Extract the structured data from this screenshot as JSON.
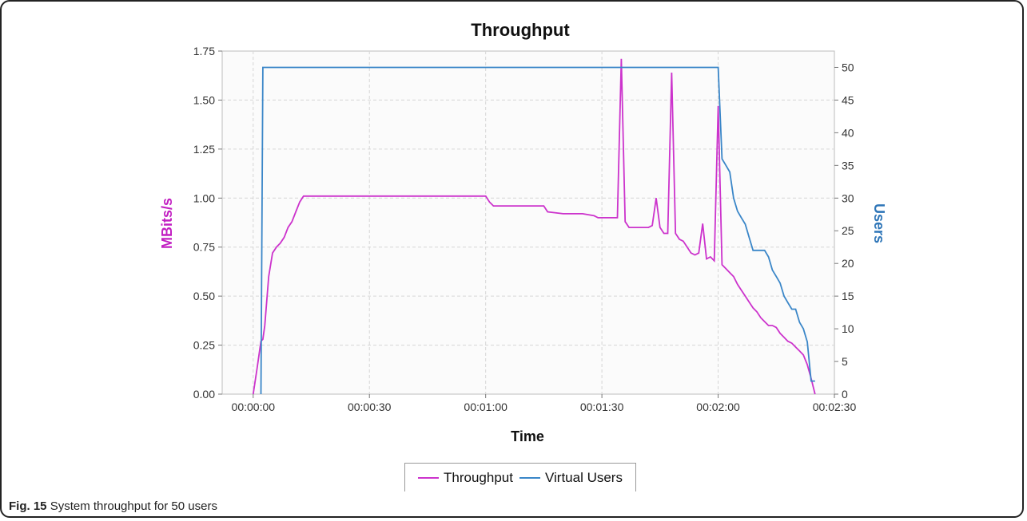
{
  "caption": {
    "label": "Fig. 15",
    "text": "System throughput for 50 users"
  },
  "chart_data": {
    "type": "line",
    "title": "Throughput",
    "xlabel": "Time",
    "ylabel": "MBits/s",
    "y2label": "Users",
    "x_unit": "seconds",
    "xlim": [
      -8,
      150
    ],
    "ylim": [
      0,
      1.75
    ],
    "y2lim": [
      0,
      52.5
    ],
    "xticks": [
      0,
      30,
      60,
      90,
      120,
      150
    ],
    "xtick_labels": [
      "00:00:00",
      "00:00:30",
      "00:01:00",
      "00:01:30",
      "00:02:00",
      "00:02:30"
    ],
    "yticks": [
      0,
      0.25,
      0.5,
      0.75,
      1.0,
      1.25,
      1.5,
      1.75
    ],
    "ytick_labels": [
      "0.00",
      "0.25",
      "0.50",
      "0.75",
      "1.00",
      "1.25",
      "1.50",
      "1.75"
    ],
    "y2ticks": [
      0,
      5,
      10,
      15,
      20,
      25,
      30,
      35,
      40,
      45,
      50
    ],
    "y2tick_labels": [
      "0",
      "5",
      "10",
      "15",
      "20",
      "25",
      "30",
      "35",
      "40",
      "45",
      "50"
    ],
    "grid": true,
    "legend_position": "bottom",
    "series": [
      {
        "name": "Throughput",
        "axis": "left",
        "color": "#cc33cc",
        "x": [
          0,
          1,
          2,
          2.5,
          3,
          4,
          5,
          6,
          7,
          8,
          9,
          10,
          11,
          12,
          13,
          20,
          30,
          40,
          50,
          60,
          61,
          62,
          70,
          75,
          76,
          80,
          85,
          88,
          89,
          90,
          92,
          93,
          94,
          95,
          96,
          97,
          98,
          99,
          100,
          101,
          102,
          103,
          104,
          105,
          106,
          107,
          108,
          109,
          110,
          111,
          112,
          113,
          114,
          115,
          116,
          117,
          118,
          119,
          120,
          121,
          122,
          123,
          124,
          125,
          126,
          127,
          128,
          129,
          130,
          131,
          132,
          133,
          134,
          135,
          136,
          137,
          138,
          139,
          140,
          141,
          142,
          143,
          144,
          145
        ],
        "y": [
          0.0,
          0.13,
          0.27,
          0.28,
          0.35,
          0.6,
          0.72,
          0.75,
          0.77,
          0.8,
          0.85,
          0.88,
          0.93,
          0.98,
          1.01,
          1.01,
          1.01,
          1.01,
          1.01,
          1.01,
          0.98,
          0.96,
          0.96,
          0.96,
          0.93,
          0.92,
          0.92,
          0.91,
          0.9,
          0.9,
          0.9,
          0.9,
          0.9,
          1.71,
          0.88,
          0.85,
          0.85,
          0.85,
          0.85,
          0.85,
          0.85,
          0.86,
          1.0,
          0.85,
          0.82,
          0.82,
          1.64,
          0.82,
          0.79,
          0.78,
          0.75,
          0.72,
          0.71,
          0.72,
          0.87,
          0.69,
          0.7,
          0.68,
          1.47,
          0.66,
          0.64,
          0.62,
          0.6,
          0.56,
          0.53,
          0.5,
          0.47,
          0.44,
          0.42,
          0.39,
          0.37,
          0.35,
          0.35,
          0.34,
          0.31,
          0.29,
          0.27,
          0.26,
          0.24,
          0.22,
          0.2,
          0.15,
          0.08,
          0.0
        ]
      },
      {
        "name": "Virtual Users",
        "axis": "right",
        "color": "#3a86c8",
        "x": [
          2,
          2.5,
          8,
          30,
          60,
          90,
          119,
          120,
          121,
          122,
          123,
          124,
          125,
          126,
          127,
          128,
          129,
          130,
          131,
          132,
          133,
          134,
          135,
          136,
          137,
          138,
          139,
          140,
          141,
          142,
          143,
          144,
          145
        ],
        "y": [
          0,
          50,
          50,
          50,
          50,
          50,
          50,
          50,
          36,
          35,
          34,
          30,
          28,
          27,
          26,
          24,
          22,
          22,
          22,
          22,
          21,
          19,
          18,
          17,
          15,
          14,
          13,
          13,
          11,
          10,
          8,
          2,
          2
        ]
      }
    ]
  }
}
